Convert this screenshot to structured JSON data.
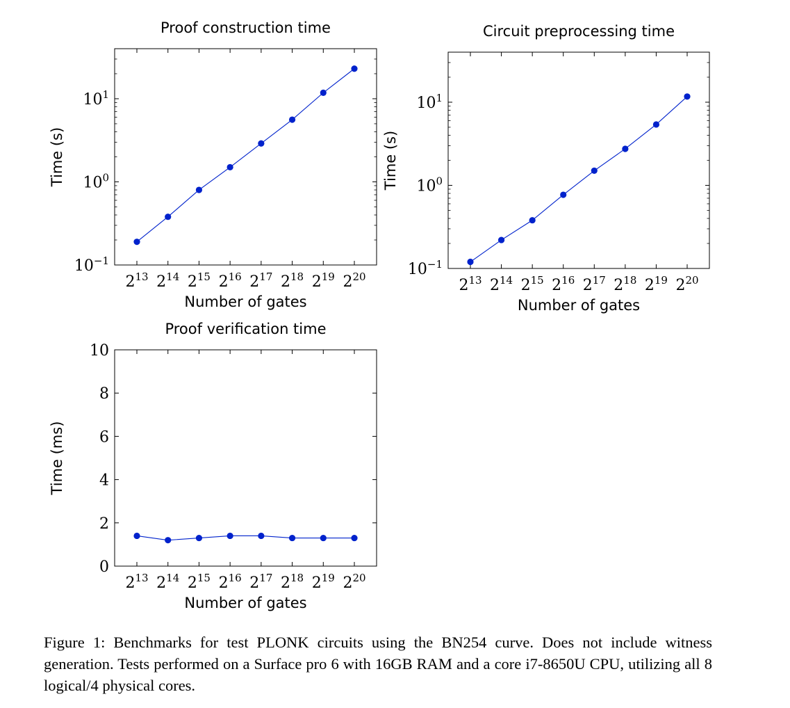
{
  "chart_data": [
    {
      "type": "line",
      "title": "Proof construction time",
      "xlabel": "Number of gates",
      "ylabel": "Time (s)",
      "categories": [
        "2^13",
        "2^14",
        "2^15",
        "2^16",
        "2^17",
        "2^18",
        "2^19",
        "2^20"
      ],
      "x_tick_labels": [
        {
          "base": "2",
          "exp": "13"
        },
        {
          "base": "2",
          "exp": "14"
        },
        {
          "base": "2",
          "exp": "15"
        },
        {
          "base": "2",
          "exp": "16"
        },
        {
          "base": "2",
          "exp": "17"
        },
        {
          "base": "2",
          "exp": "18"
        },
        {
          "base": "2",
          "exp": "19"
        },
        {
          "base": "2",
          "exp": "20"
        }
      ],
      "y_scale": "log",
      "ylim": [
        0.1,
        40
      ],
      "y_tick_labels": [
        {
          "value": 0.1,
          "base": "10",
          "exp": "−1"
        },
        {
          "value": 1,
          "base": "10",
          "exp": "0"
        },
        {
          "value": 10,
          "base": "10",
          "exp": "1"
        }
      ],
      "series": [
        {
          "values": [
            0.19,
            0.38,
            0.8,
            1.5,
            2.9,
            5.6,
            11.8,
            23
          ]
        }
      ],
      "color": "#0022cc",
      "grid": false
    },
    {
      "type": "line",
      "title": "Circuit preprocessing time",
      "xlabel": "Number of gates",
      "ylabel": "Time (s)",
      "categories": [
        "2^13",
        "2^14",
        "2^15",
        "2^16",
        "2^17",
        "2^18",
        "2^19",
        "2^20"
      ],
      "x_tick_labels": [
        {
          "base": "2",
          "exp": "13"
        },
        {
          "base": "2",
          "exp": "14"
        },
        {
          "base": "2",
          "exp": "15"
        },
        {
          "base": "2",
          "exp": "16"
        },
        {
          "base": "2",
          "exp": "17"
        },
        {
          "base": "2",
          "exp": "18"
        },
        {
          "base": "2",
          "exp": "19"
        },
        {
          "base": "2",
          "exp": "20"
        }
      ],
      "y_scale": "log",
      "ylim": [
        0.1,
        40
      ],
      "y_tick_labels": [
        {
          "value": 0.1,
          "base": "10",
          "exp": "−1"
        },
        {
          "value": 1,
          "base": "10",
          "exp": "0"
        },
        {
          "value": 10,
          "base": "10",
          "exp": "1"
        }
      ],
      "series": [
        {
          "values": [
            0.12,
            0.22,
            0.38,
            0.77,
            1.5,
            2.75,
            5.4,
            11.7
          ]
        }
      ],
      "color": "#0022cc",
      "grid": false
    },
    {
      "type": "line",
      "title": "Proof verification time",
      "xlabel": "Number of gates",
      "ylabel": "Time (ms)",
      "categories": [
        "2^13",
        "2^14",
        "2^15",
        "2^16",
        "2^17",
        "2^18",
        "2^19",
        "2^20"
      ],
      "x_tick_labels": [
        {
          "base": "2",
          "exp": "13"
        },
        {
          "base": "2",
          "exp": "14"
        },
        {
          "base": "2",
          "exp": "15"
        },
        {
          "base": "2",
          "exp": "16"
        },
        {
          "base": "2",
          "exp": "17"
        },
        {
          "base": "2",
          "exp": "18"
        },
        {
          "base": "2",
          "exp": "19"
        },
        {
          "base": "2",
          "exp": "20"
        }
      ],
      "y_scale": "linear",
      "ylim": [
        0,
        10
      ],
      "y_tick_labels": [
        {
          "value": 0,
          "label": "0"
        },
        {
          "value": 2,
          "label": "2"
        },
        {
          "value": 4,
          "label": "4"
        },
        {
          "value": 6,
          "label": "6"
        },
        {
          "value": 8,
          "label": "8"
        },
        {
          "value": 10,
          "label": "10"
        }
      ],
      "series": [
        {
          "values": [
            1.4,
            1.2,
            1.3,
            1.4,
            1.4,
            1.3,
            1.3,
            1.3
          ]
        }
      ],
      "color": "#0022cc",
      "grid": false
    }
  ],
  "caption": "Figure 1: Benchmarks for test PLONK circuits using the BN254 curve. Does not include witness generation. Tests performed on a Surface pro 6 with 16GB RAM and a core i7-8650U CPU, utilizing all 8 logical/4 physical cores."
}
